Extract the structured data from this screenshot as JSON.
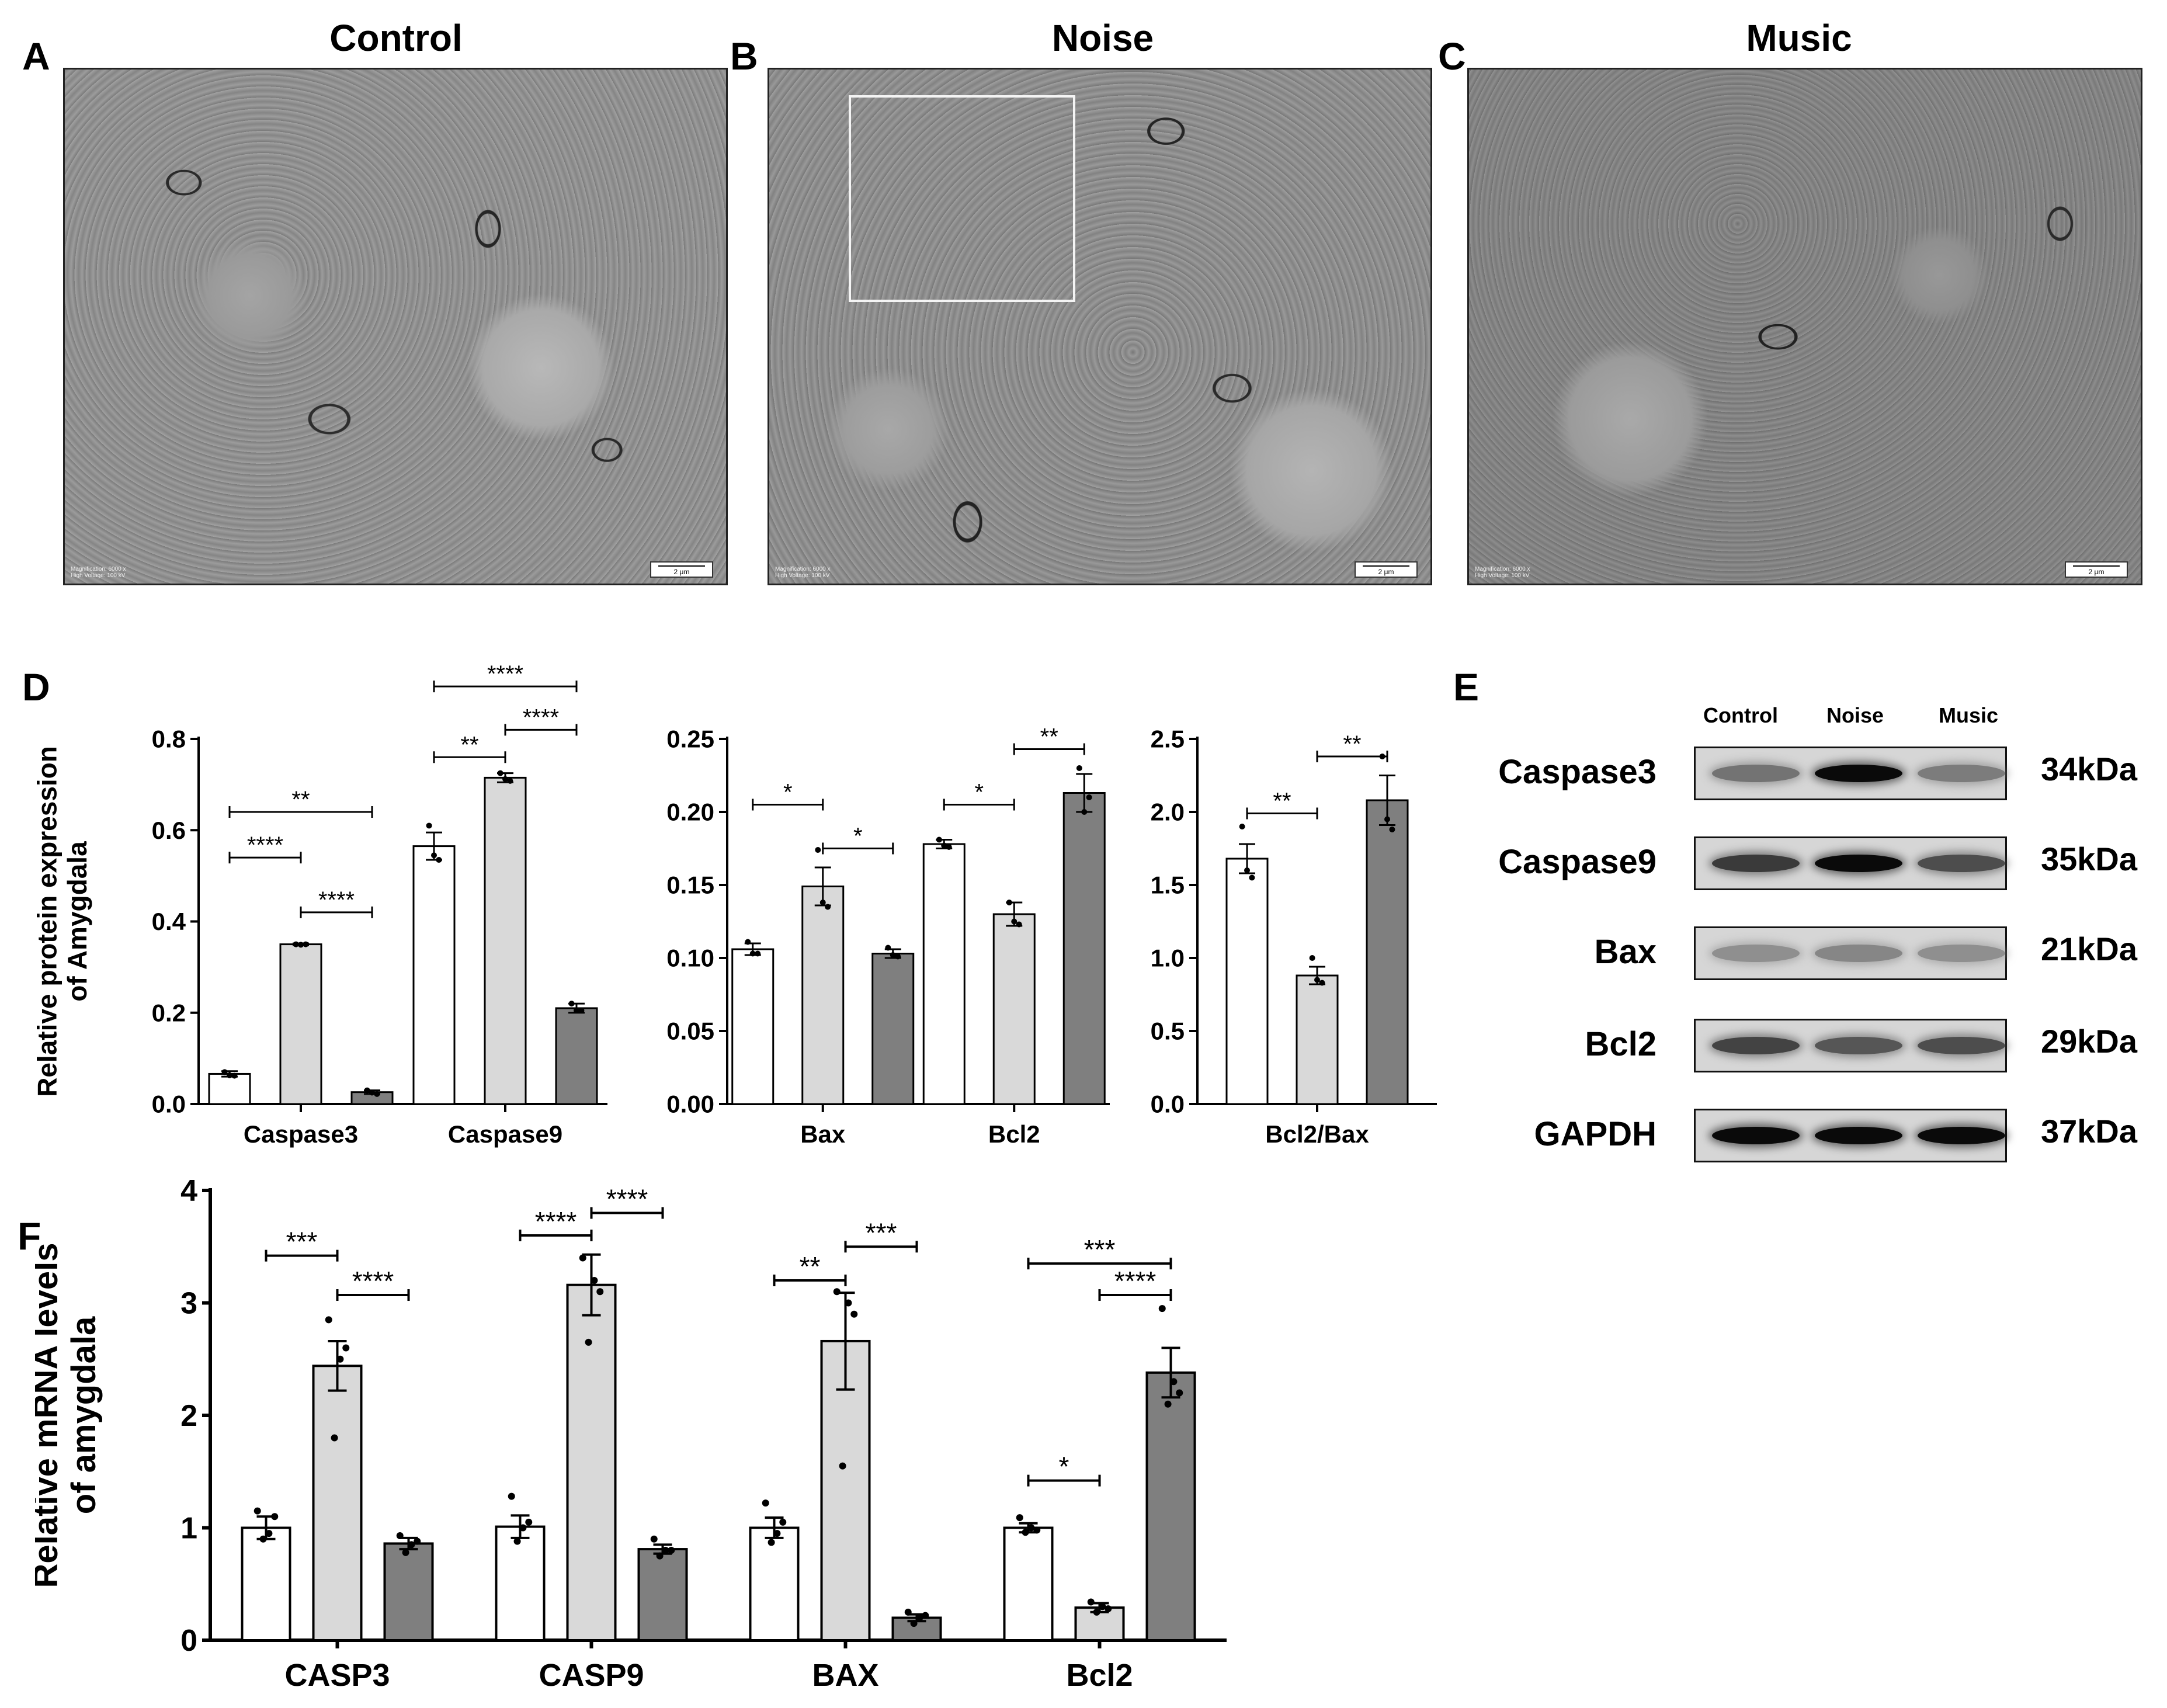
{
  "panels": {
    "a": "A",
    "b": "B",
    "c": "C",
    "d": "D",
    "e": "E",
    "f": "F"
  },
  "tem": [
    {
      "title": "Control",
      "mag": "Magnification: 6000 x\nHigh Voltage: 100 kV",
      "scale": "2 μm"
    },
    {
      "title": "Noise",
      "mag": "Magnification: 6000 x\nHigh Voltage: 100 kV",
      "scale": "2 μm"
    },
    {
      "title": "Music",
      "mag": "Magnification: 6000 x\nHigh Voltage: 100 kV",
      "scale": "2 μm"
    }
  ],
  "colors": {
    "control": "#ffffff",
    "noise": "#d9d9d9",
    "music": "#7f7f7f",
    "axis": "#000000"
  },
  "chart_data": [
    {
      "id": "d1",
      "type": "bar",
      "ylabel": "Relative protein expression\nof Amygdala",
      "ylim": [
        0,
        0.8
      ],
      "yticks": [
        "0.0",
        "0.2",
        "0.4",
        "0.6",
        "0.8"
      ],
      "categories": [
        "Caspase3",
        "Caspase9"
      ],
      "series": [
        {
          "values": [
            0.066,
            0.565
          ],
          "err": [
            0.006,
            0.03
          ],
          "points": [
            [
              0.07,
              0.063,
              0.062
            ],
            [
              0.61,
              0.545,
              0.535
            ]
          ]
        },
        {
          "values": [
            0.35,
            0.715
          ],
          "err": [
            0.002,
            0.01
          ],
          "points": [
            [
              0.35,
              0.349,
              0.35
            ],
            [
              0.725,
              0.712,
              0.708
            ]
          ]
        },
        {
          "values": [
            0.026,
            0.21
          ],
          "err": [
            0.004,
            0.01
          ],
          "points": [
            [
              0.03,
              0.025,
              0.022
            ],
            [
              0.22,
              0.205,
              0.205
            ]
          ]
        }
      ],
      "sig": [
        {
          "label": "**",
          "ci": 0,
          "from": 0,
          "to": 2,
          "y": 0.64
        },
        {
          "label": "****",
          "ci": 0,
          "from": 0,
          "to": 1,
          "y": 0.54
        },
        {
          "label": "****",
          "ci": 0,
          "from": 1,
          "to": 2,
          "y": 0.42
        },
        {
          "label": "****",
          "ci": 1,
          "from": 0,
          "to": 2,
          "y": 0.915
        },
        {
          "label": "****",
          "ci": 1,
          "from": 1,
          "to": 2,
          "y": 0.82
        },
        {
          "label": "**",
          "ci": 1,
          "from": 0,
          "to": 1,
          "y": 0.76
        }
      ]
    },
    {
      "id": "d2",
      "type": "bar",
      "ylabel": "",
      "ylim": [
        0,
        0.25
      ],
      "yticks": [
        "0.00",
        "0.05",
        "0.10",
        "0.15",
        "0.20",
        "0.25"
      ],
      "categories": [
        "Bax",
        "Bcl2"
      ],
      "series": [
        {
          "values": [
            0.106,
            0.178
          ],
          "err": [
            0.004,
            0.003
          ],
          "points": [
            [
              0.111,
              0.103,
              0.103
            ],
            [
              0.181,
              0.177,
              0.176
            ]
          ]
        },
        {
          "values": [
            0.149,
            0.13
          ],
          "err": [
            0.013,
            0.008
          ],
          "points": [
            [
              0.174,
              0.138,
              0.135
            ],
            [
              0.138,
              0.125,
              0.123
            ]
          ]
        },
        {
          "values": [
            0.103,
            0.213
          ],
          "err": [
            0.003,
            0.013
          ],
          "points": [
            [
              0.107,
              0.102,
              0.101
            ],
            [
              0.23,
              0.2,
              0.21
            ]
          ]
        }
      ],
      "sig": [
        {
          "label": "*",
          "ci": 0,
          "from": 0,
          "to": 1,
          "y": 0.205
        },
        {
          "label": "*",
          "ci": 0,
          "from": 1,
          "to": 2,
          "y": 0.175
        },
        {
          "label": "*",
          "ci": 1,
          "from": 0,
          "to": 1,
          "y": 0.205
        },
        {
          "label": "**",
          "ci": 1,
          "from": 1,
          "to": 2,
          "y": 0.243
        }
      ]
    },
    {
      "id": "d3",
      "type": "bar",
      "ylabel": "",
      "ylim": [
        0,
        2.5
      ],
      "yticks": [
        "0.0",
        "0.5",
        "1.0",
        "1.5",
        "2.0",
        "2.5"
      ],
      "categories": [
        "Bcl2/Bax"
      ],
      "series": [
        {
          "values": [
            1.68
          ],
          "err": [
            0.1
          ],
          "points": [
            [
              1.9,
              1.6,
              1.55
            ]
          ]
        },
        {
          "values": [
            0.88
          ],
          "err": [
            0.06
          ],
          "points": [
            [
              1.0,
              0.85,
              0.83
            ]
          ]
        },
        {
          "values": [
            2.08
          ],
          "err": [
            0.17
          ],
          "points": [
            [
              2.38,
              1.95,
              1.88
            ]
          ]
        }
      ],
      "sig": [
        {
          "label": "**",
          "ci": 0,
          "from": 0,
          "to": 1,
          "y": 1.99
        },
        {
          "label": "**",
          "ci": 0,
          "from": 1,
          "to": 2,
          "y": 2.38
        }
      ]
    },
    {
      "id": "f",
      "type": "bar",
      "ylabel": "Relative mRNA levels\nof amygdala",
      "ylim": [
        0,
        4
      ],
      "yticks": [
        "0",
        "1",
        "2",
        "3",
        "4"
      ],
      "categories": [
        "CASP3",
        "CASP9",
        "BAX",
        "Bcl2"
      ],
      "series": [
        {
          "values": [
            1.0,
            1.01,
            1.0,
            1.0
          ],
          "err": [
            0.1,
            0.1,
            0.09,
            0.04
          ],
          "points": [
            [
              1.15,
              0.9,
              0.95,
              1.1
            ],
            [
              1.28,
              0.88,
              1.0,
              1.05
            ],
            [
              1.22,
              0.87,
              0.95,
              1.05
            ],
            [
              1.09,
              0.96,
              1.0,
              0.98
            ]
          ]
        },
        {
          "values": [
            2.44,
            3.16,
            2.66,
            0.29
          ],
          "err": [
            0.22,
            0.27,
            0.43,
            0.04
          ],
          "points": [
            [
              2.85,
              1.8,
              2.5,
              2.6
            ],
            [
              3.4,
              2.65,
              3.2,
              3.1
            ],
            [
              3.1,
              1.55,
              3.0,
              2.9
            ],
            [
              0.34,
              0.25,
              0.3,
              0.28
            ]
          ]
        },
        {
          "values": [
            0.86,
            0.81,
            0.2,
            2.38
          ],
          "err": [
            0.05,
            0.04,
            0.03,
            0.22
          ],
          "points": [
            [
              0.93,
              0.78,
              0.85,
              0.88
            ],
            [
              0.9,
              0.75,
              0.8,
              0.8
            ],
            [
              0.25,
              0.15,
              0.2,
              0.22
            ],
            [
              2.95,
              2.1,
              2.3,
              2.2
            ]
          ]
        }
      ],
      "sig": [
        {
          "label": "***",
          "ci": 0,
          "from": 0,
          "to": 1,
          "y": 3.42
        },
        {
          "label": "****",
          "ci": 0,
          "from": 1,
          "to": 2,
          "y": 3.07
        },
        {
          "label": "****",
          "ci": 1,
          "from": 0,
          "to": 1,
          "y": 3.6
        },
        {
          "label": "****",
          "ci": 1,
          "from": 1,
          "to": 2,
          "y": 3.8
        },
        {
          "label": "**",
          "ci": 2,
          "from": 0,
          "to": 1,
          "y": 3.2
        },
        {
          "label": "***",
          "ci": 2,
          "from": 1,
          "to": 2,
          "y": 3.5
        },
        {
          "label": "***",
          "ci": 3,
          "from": 0,
          "to": 2,
          "y": 3.35
        },
        {
          "label": "****",
          "ci": 3,
          "from": 1,
          "to": 2,
          "y": 3.07
        },
        {
          "label": "*",
          "ci": 3,
          "from": 0,
          "to": 1,
          "y": 1.42
        }
      ]
    }
  ],
  "blot": {
    "columns": [
      "Control",
      "Noise",
      "Music"
    ],
    "rows": [
      {
        "label": "Caspase3",
        "size": "34kDa",
        "bands": [
          0.45,
          1.0,
          0.4
        ]
      },
      {
        "label": "Caspase9",
        "size": "35kDa",
        "bands": [
          0.75,
          1.0,
          0.65
        ]
      },
      {
        "label": "Bax",
        "size": "21kDa",
        "bands": [
          0.3,
          0.35,
          0.3
        ]
      },
      {
        "label": "Bcl2",
        "size": "29kDa",
        "bands": [
          0.7,
          0.6,
          0.65
        ]
      },
      {
        "label": "GAPDH",
        "size": "37kDa",
        "bands": [
          1.0,
          1.0,
          1.0
        ]
      }
    ]
  }
}
